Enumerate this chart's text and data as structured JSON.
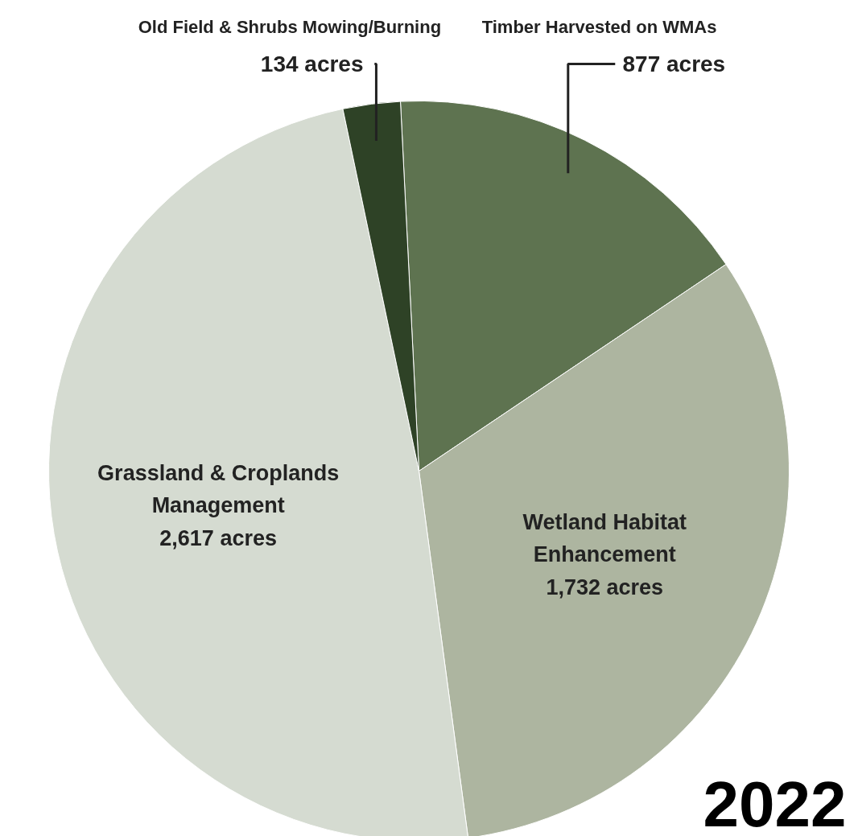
{
  "chart_data": {
    "type": "pie",
    "categories": [
      "Timber Harvested on WMAs",
      "Wetland Habitat\nEnhancement",
      "Grassland & Croplands\nManagement",
      "Old Field & Shrubs Mowing/Burning"
    ],
    "values": [
      877,
      1732,
      2617,
      134
    ],
    "colors": [
      "#5e7350",
      "#adb5a0",
      "#d5dbd1",
      "#2e4226"
    ],
    "value_labels": [
      "877 acres",
      "1,732 acres",
      "2,617 acres",
      "134 acres"
    ],
    "annotations": [
      "2022"
    ]
  }
}
